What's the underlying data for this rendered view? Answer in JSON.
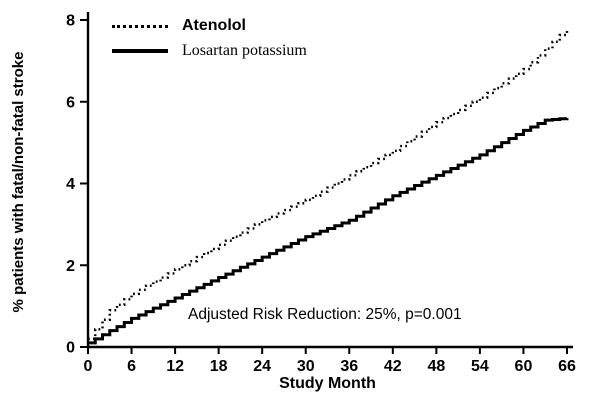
{
  "chart_data": {
    "type": "line",
    "title": "",
    "xlabel": "Study Month",
    "ylabel": "% patients with fatal/non-fatal stroke",
    "annotation": "Adjusted Risk Reduction: 25%, p=0.001",
    "xlim": [
      0,
      66
    ],
    "ylim": [
      0,
      8
    ],
    "xticks": [
      0,
      6,
      12,
      18,
      24,
      30,
      36,
      42,
      48,
      54,
      60,
      66
    ],
    "yticks": [
      0,
      2,
      4,
      6,
      8
    ],
    "grid": false,
    "legend_position": "upper-left-inside",
    "line_color": "#000000",
    "background_color": "#ffffff",
    "x": [
      0,
      3,
      6,
      9,
      12,
      15,
      18,
      21,
      24,
      27,
      30,
      33,
      36,
      39,
      42,
      45,
      48,
      51,
      54,
      57,
      60,
      63,
      66
    ],
    "series": [
      {
        "name": "Atenolol",
        "style": "dotted",
        "values": [
          0.2,
          0.9,
          1.3,
          1.6,
          1.9,
          2.2,
          2.5,
          2.8,
          3.1,
          3.35,
          3.6,
          3.9,
          4.2,
          4.5,
          4.8,
          5.15,
          5.5,
          5.8,
          6.1,
          6.45,
          6.8,
          7.3,
          7.8
        ]
      },
      {
        "name": "Losartan potassium",
        "style": "solid",
        "values": [
          0.1,
          0.4,
          0.7,
          0.95,
          1.2,
          1.45,
          1.7,
          1.95,
          2.2,
          2.45,
          2.7,
          2.9,
          3.1,
          3.4,
          3.7,
          3.95,
          4.2,
          4.45,
          4.7,
          5.0,
          5.3,
          5.55,
          5.6
        ]
      }
    ]
  }
}
